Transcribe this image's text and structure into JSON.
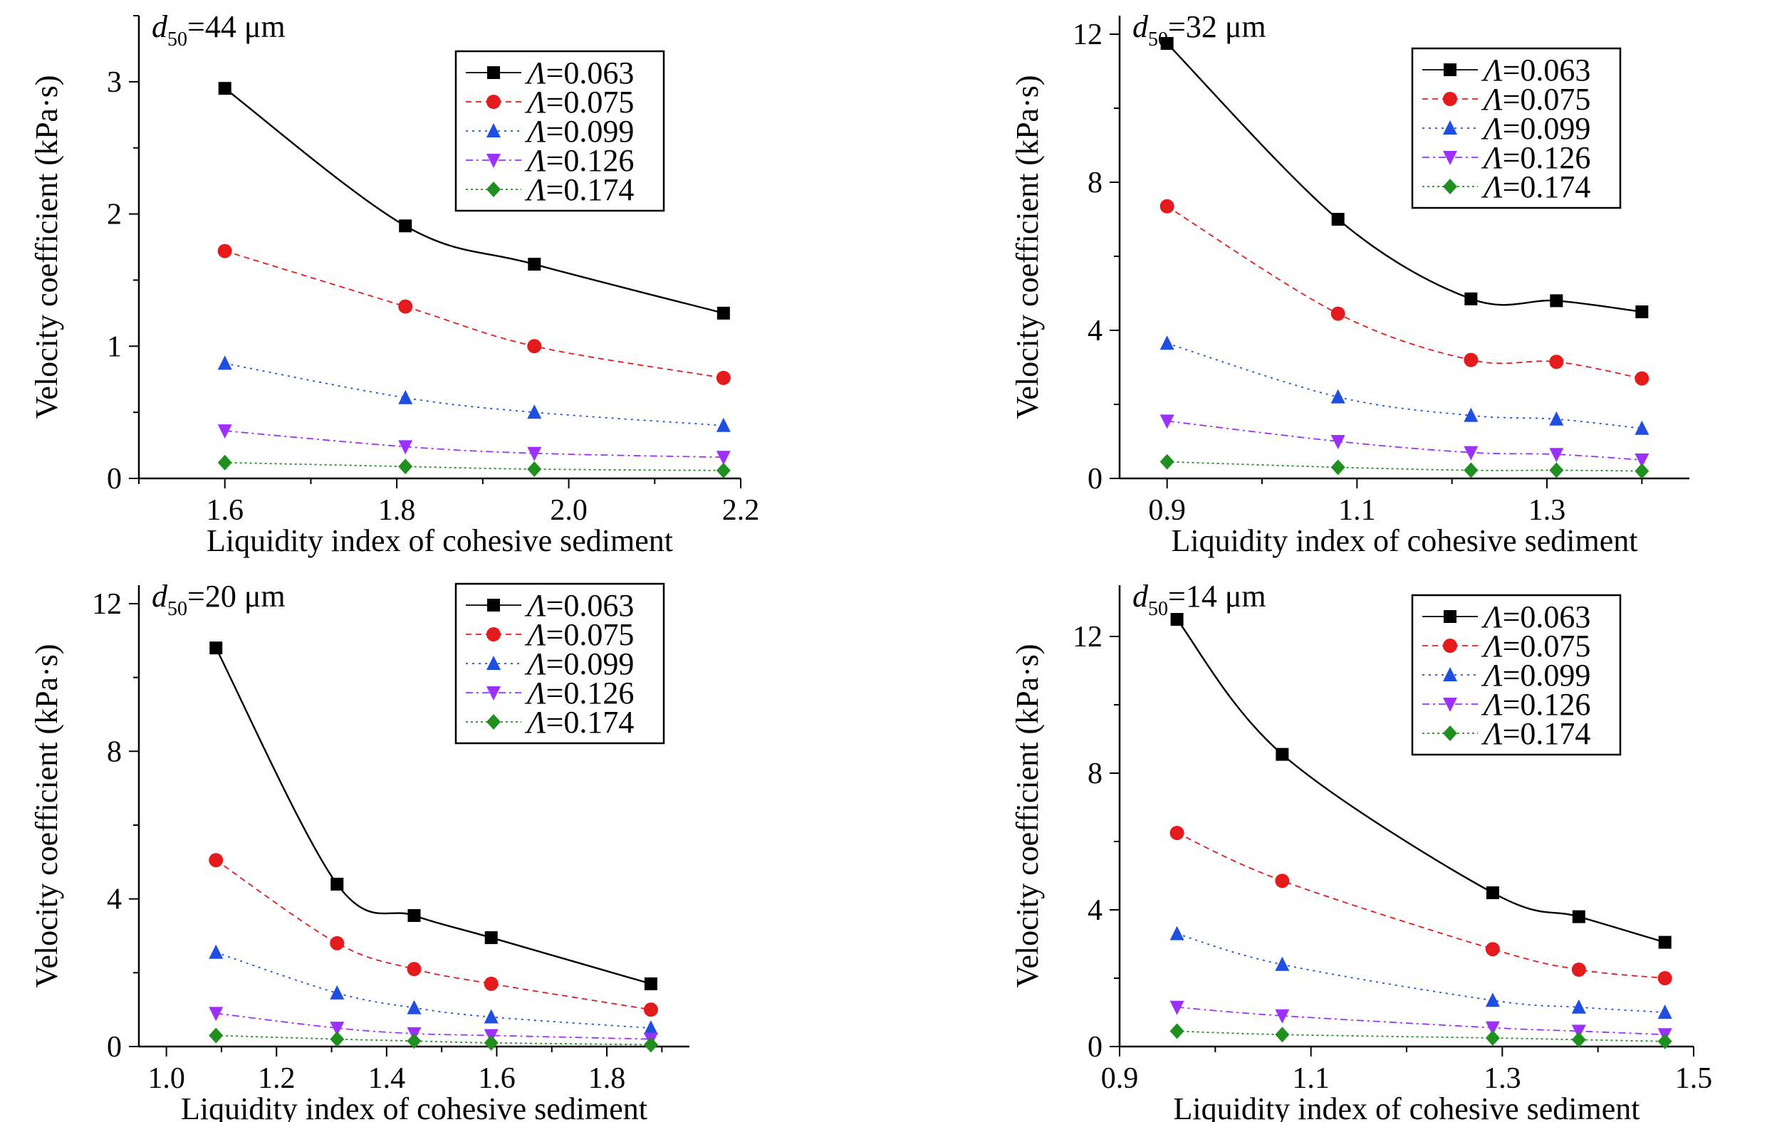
{
  "figure": {
    "series_styles": [
      {
        "color": "#000000",
        "marker": "square",
        "dash": ""
      },
      {
        "color": "#e41a1c",
        "marker": "circle",
        "dash": "8,6"
      },
      {
        "color": "#1f4fe0",
        "marker": "triangle-up",
        "dash": "3,6"
      },
      {
        "color": "#9b30ff",
        "marker": "triangle-down",
        "dash": "10,5,3,5"
      },
      {
        "color": "#1f8f1f",
        "marker": "diamond",
        "dash": "3,4"
      }
    ]
  },
  "chart_data": [
    {
      "type": "line",
      "title_symbol": "d",
      "title_sub": "50",
      "title_rest": "=44 μm",
      "xlabel": "Liquidity index of cohesive sediment",
      "ylabel": "Velocity coefficient (kPa·s)",
      "xlim": [
        1.5,
        2.2
      ],
      "ylim": [
        0,
        3.5
      ],
      "xticks": [
        "1.6",
        "1.8",
        "2.0",
        "2.2"
      ],
      "xtick_values": [
        1.6,
        1.8,
        2.0,
        2.2
      ],
      "yticks": [
        "0",
        "1",
        "2",
        "3"
      ],
      "ytick_values": [
        0,
        1,
        2,
        3
      ],
      "legend_position": "top-right",
      "x": [
        1.6,
        1.81,
        1.96,
        2.18
      ],
      "series": [
        {
          "name_symbol": "Λ",
          "name_rest": "=0.063",
          "values": [
            2.95,
            1.91,
            1.62,
            1.25
          ]
        },
        {
          "name_symbol": "Λ",
          "name_rest": "=0.075",
          "values": [
            1.72,
            1.3,
            1.0,
            0.76
          ]
        },
        {
          "name_symbol": "Λ",
          "name_rest": "=0.099",
          "values": [
            0.87,
            0.61,
            0.5,
            0.4
          ]
        },
        {
          "name_symbol": "Λ",
          "name_rest": "=0.126",
          "values": [
            0.36,
            0.24,
            0.19,
            0.16
          ]
        },
        {
          "name_symbol": "Λ",
          "name_rest": "=0.174",
          "values": [
            0.12,
            0.09,
            0.07,
            0.06
          ]
        }
      ]
    },
    {
      "type": "line",
      "title_symbol": "d",
      "title_sub": "50",
      "title_rest": "=32 μm",
      "xlabel": "Liquidity index of cohesive sediment",
      "ylabel": "Velocity coefficient (kPa·s)",
      "xlim": [
        0.85,
        1.45
      ],
      "ylim": [
        0,
        12.5
      ],
      "xticks": [
        "0.9",
        "1.1",
        "1.3"
      ],
      "xtick_values": [
        0.9,
        1.1,
        1.3
      ],
      "yticks": [
        "0",
        "4",
        "8",
        "12"
      ],
      "ytick_values": [
        0,
        4,
        8,
        12
      ],
      "legend_position": "top-right",
      "x": [
        0.9,
        1.08,
        1.22,
        1.31,
        1.4
      ],
      "series": [
        {
          "name_symbol": "Λ",
          "name_rest": "=0.063",
          "values": [
            11.75,
            7.0,
            4.85,
            4.8,
            4.5
          ]
        },
        {
          "name_symbol": "Λ",
          "name_rest": "=0.075",
          "values": [
            7.35,
            4.45,
            3.2,
            3.15,
            2.7
          ]
        },
        {
          "name_symbol": "Λ",
          "name_rest": "=0.099",
          "values": [
            3.65,
            2.2,
            1.7,
            1.6,
            1.35
          ]
        },
        {
          "name_symbol": "Λ",
          "name_rest": "=0.126",
          "values": [
            1.55,
            1.0,
            0.7,
            0.65,
            0.5
          ]
        },
        {
          "name_symbol": "Λ",
          "name_rest": "=0.174",
          "values": [
            0.45,
            0.3,
            0.22,
            0.22,
            0.2
          ]
        }
      ]
    },
    {
      "type": "line",
      "title_symbol": "d",
      "title_sub": "50",
      "title_rest": "=20 μm",
      "xlabel": "Liquidity index of cohesive sediment",
      "ylabel": "Velocity coefficient (kPa·s)",
      "xlim": [
        0.95,
        1.95
      ],
      "ylim": [
        0,
        12.5
      ],
      "xticks": [
        "1.0",
        "1.2",
        "1.4",
        "1.6",
        "1.8"
      ],
      "xtick_values": [
        1.0,
        1.2,
        1.4,
        1.6,
        1.8
      ],
      "yticks": [
        "0",
        "4",
        "8",
        "12"
      ],
      "ytick_values": [
        0,
        4,
        8,
        12
      ],
      "legend_position": "top-right",
      "x": [
        1.09,
        1.31,
        1.45,
        1.59,
        1.88
      ],
      "series": [
        {
          "name_symbol": "Λ",
          "name_rest": "=0.063",
          "values": [
            10.8,
            4.4,
            3.55,
            2.95,
            1.7
          ]
        },
        {
          "name_symbol": "Λ",
          "name_rest": "=0.075",
          "values": [
            5.05,
            2.8,
            2.1,
            1.7,
            1.0
          ]
        },
        {
          "name_symbol": "Λ",
          "name_rest": "=0.099",
          "values": [
            2.55,
            1.45,
            1.05,
            0.8,
            0.5
          ]
        },
        {
          "name_symbol": "Λ",
          "name_rest": "=0.126",
          "values": [
            0.9,
            0.5,
            0.35,
            0.3,
            0.2
          ]
        },
        {
          "name_symbol": "Λ",
          "name_rest": "=0.174",
          "values": [
            0.3,
            0.2,
            0.15,
            0.1,
            0.05
          ]
        }
      ]
    },
    {
      "type": "line",
      "title_symbol": "d",
      "title_sub": "50",
      "title_rest": "=14 μm",
      "xlabel": "Liquidity index of cohesive sediment",
      "ylabel": "Velocity coefficient (kPa·s)",
      "xlim": [
        0.9,
        1.5
      ],
      "ylim": [
        0,
        13.5
      ],
      "xticks": [
        "0.9",
        "1.1",
        "1.3",
        "1.5"
      ],
      "xtick_values": [
        0.9,
        1.1,
        1.3,
        1.5
      ],
      "yticks": [
        "0",
        "4",
        "8",
        "12"
      ],
      "ytick_values": [
        0,
        4,
        8,
        12
      ],
      "legend_position": "top-right",
      "x": [
        0.96,
        1.07,
        1.29,
        1.38,
        1.47
      ],
      "series": [
        {
          "name_symbol": "Λ",
          "name_rest": "=0.063",
          "values": [
            12.5,
            8.55,
            4.5,
            3.8,
            3.05
          ]
        },
        {
          "name_symbol": "Λ",
          "name_rest": "=0.075",
          "values": [
            6.25,
            4.85,
            2.85,
            2.25,
            2.0
          ]
        },
        {
          "name_symbol": "Λ",
          "name_rest": "=0.099",
          "values": [
            3.3,
            2.4,
            1.35,
            1.15,
            1.0
          ]
        },
        {
          "name_symbol": "Λ",
          "name_rest": "=0.126",
          "values": [
            1.15,
            0.9,
            0.55,
            0.45,
            0.35
          ]
        },
        {
          "name_symbol": "Λ",
          "name_rest": "=0.174",
          "values": [
            0.45,
            0.35,
            0.25,
            0.2,
            0.15
          ]
        }
      ]
    }
  ]
}
